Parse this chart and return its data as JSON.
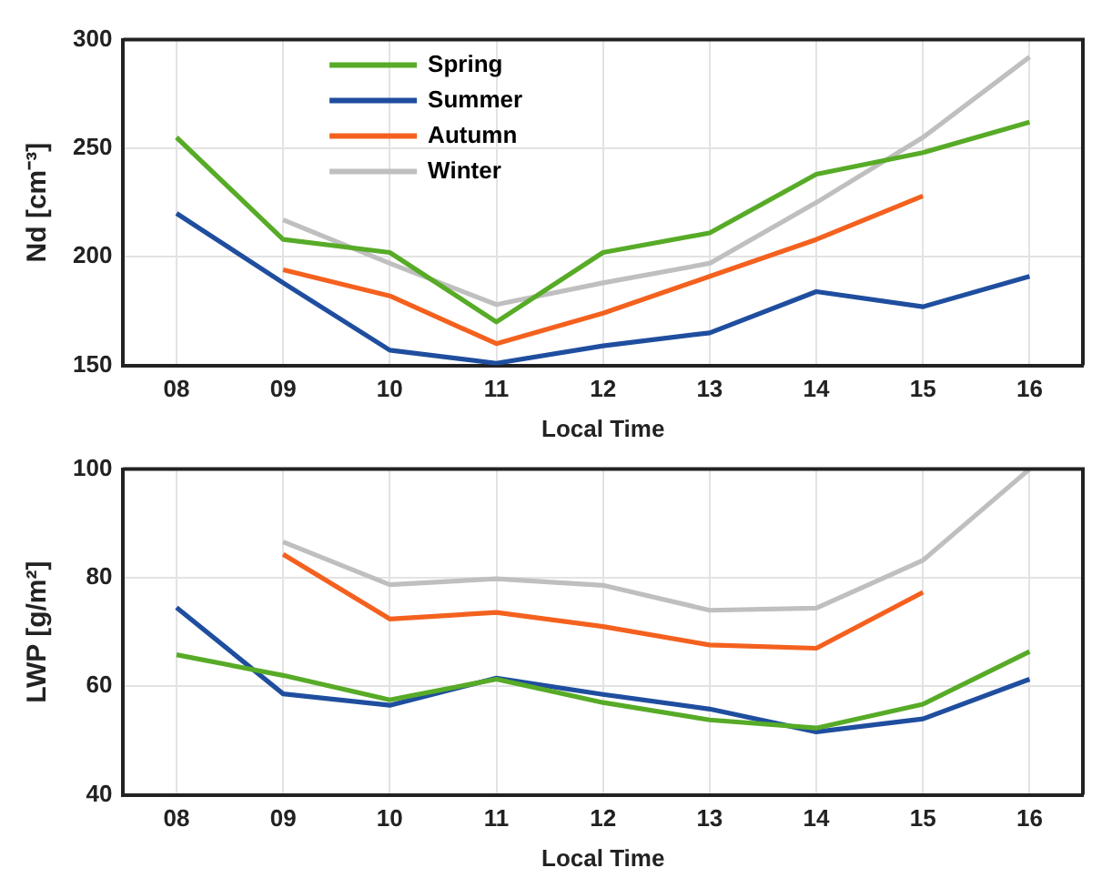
{
  "chart_data": [
    {
      "type": "line",
      "xlabel": "Local Time",
      "ylabel": "Nd [cm⁻³]",
      "categories": [
        "08",
        "09",
        "10",
        "11",
        "12",
        "13",
        "14",
        "15",
        "16"
      ],
      "ylim": [
        150,
        300
      ],
      "yticks": [
        150,
        200,
        250,
        300
      ],
      "grid": true,
      "legend": "top",
      "series": [
        {
          "name": "Spring",
          "color": "#57ab27",
          "values": [
            255,
            208,
            202,
            170,
            202,
            211,
            238,
            248,
            262
          ]
        },
        {
          "name": "Summer",
          "color": "#1f4e9f",
          "values": [
            220,
            188,
            157,
            151,
            159,
            165,
            184,
            177,
            191
          ]
        },
        {
          "name": "Autumn",
          "color": "#f4611e",
          "values": [
            null,
            194,
            182,
            160,
            174,
            191,
            208,
            228,
            null
          ]
        },
        {
          "name": "Winter",
          "color": "#bfbfbf",
          "values": [
            null,
            217,
            197,
            178,
            188,
            197,
            225,
            255,
            292
          ]
        }
      ]
    },
    {
      "type": "line",
      "xlabel": "Local Time",
      "ylabel": "LWP [g/m²]",
      "categories": [
        "08",
        "09",
        "10",
        "11",
        "12",
        "13",
        "14",
        "15",
        "16"
      ],
      "ylim": [
        40,
        100
      ],
      "yticks": [
        40,
        60,
        80,
        100
      ],
      "grid": true,
      "series": [
        {
          "color": "#57ab27",
          "values": [
            65.8,
            62,
            57.5,
            61.3,
            57,
            53.8,
            52.3,
            56.7,
            66.4
          ]
        },
        {
          "color": "#1f4e9f",
          "values": [
            74.5,
            58.6,
            56.5,
            61.5,
            58.5,
            55.8,
            51.6,
            54,
            61.3
          ]
        },
        {
          "color": "#f4611e",
          "values": [
            null,
            84.3,
            72.4,
            73.6,
            71,
            67.6,
            67,
            77.3,
            null
          ]
        },
        {
          "color": "#bfbfbf",
          "values": [
            null,
            86.6,
            78.7,
            79.8,
            78.6,
            74,
            74.4,
            83.2,
            100
          ]
        }
      ]
    }
  ]
}
